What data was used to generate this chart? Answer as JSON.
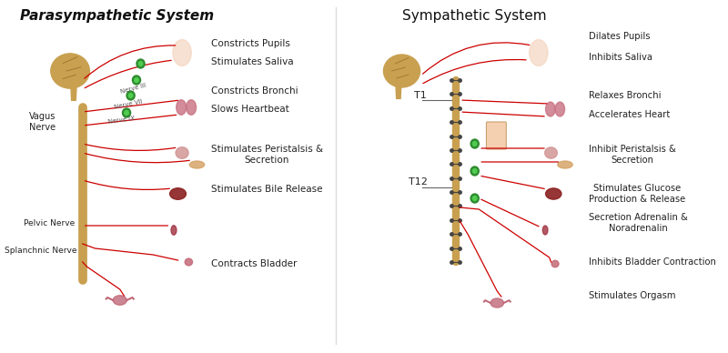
{
  "bg_color": "#ffffff",
  "title_left": "Parasympathetic System",
  "title_right": "Sympathetic System",
  "title_fontsize": 11,
  "title_style": "italic",
  "title_weight": "bold",
  "left_labels": [
    "Constricts Pupils",
    "Stimulates Saliva",
    "Constricts Bronchi",
    "Slows Heartbeat",
    "Stimulates Peristalsis &\nSecretion",
    "Stimulates Bile Release",
    "Contracts Bladder"
  ],
  "right_labels": [
    "Dilates Pupils",
    "Inhibits Saliva",
    "Relaxes Bronchi",
    "Accelerates Heart",
    "Inhibit Peristalsis &\nSecretion",
    "Stimulates Glucose\nProduction & Release",
    "Secretion Adrenalin &\nNoradrenalin",
    "Inhibits Bladder Contraction",
    "Stimulates Orgasm"
  ],
  "nerve_labels_left": [
    "Vagus\nNerve",
    "Pelvic Nerve",
    "Splanchnic Nerve"
  ],
  "spine_labels_right": [
    "T1",
    "T12"
  ],
  "label_color": "#222222",
  "line_color": "#cc0000",
  "spine_color": "#c8a050",
  "brain_color": "#c8a050",
  "ganglion_color": "#2e8b2e",
  "nerve_line_color": "#888888"
}
